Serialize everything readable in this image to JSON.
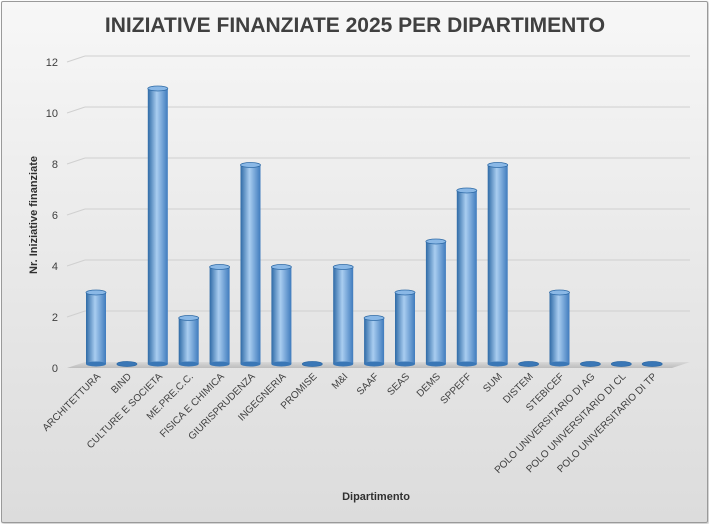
{
  "chart_data": {
    "type": "bar",
    "title": "INIZIATIVE FINANZIATE 2025 PER DIPARTIMENTO",
    "xlabel": "Dipartimento",
    "ylabel": "Nr. Iniziative finanziate",
    "ylim": [
      0,
      12
    ],
    "yticks": [
      "0",
      "2",
      "4",
      "6",
      "8",
      "10",
      "12"
    ],
    "grid": true,
    "legend": "none",
    "categories": [
      "ARCHITETTURA",
      "BIND",
      "CULTURE E SOCIETA",
      "ME.PRE.C.C.",
      "FISICA E CHIMICA",
      "GIURISPRUDENZA",
      "INGEGNERIA",
      "PROMISE",
      "M&I",
      "SAAF",
      "SEAS",
      "DEMS",
      "SPPEFF",
      "SUM",
      "DISTEM",
      "STEBICEF",
      "POLO UNIVERSITARIO DI AG",
      "POLO UNIVERSITARIO DI CL",
      "POLO UNIVERSITARIO DI TP"
    ],
    "values": [
      3,
      0,
      11,
      2,
      4,
      8,
      4,
      0,
      4,
      2,
      3,
      5,
      7,
      8,
      0,
      3,
      0,
      0,
      0
    ],
    "colors": {
      "bar": "#5b9bd5",
      "bar_dark": "#2e6aa6",
      "bar_light": "#a9cdf0",
      "floor": "#c8c8c8"
    }
  }
}
